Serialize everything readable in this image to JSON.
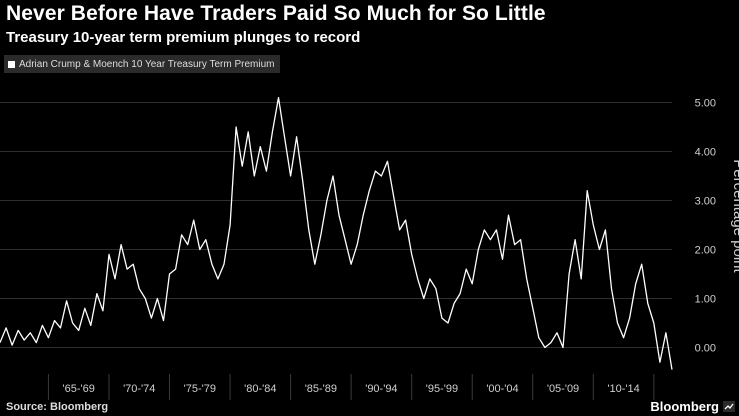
{
  "chart_data": {
    "type": "line",
    "title": "Never Before Have Traders Paid So Much for So Little",
    "subtitle": "Treasury 10-year term premium plunges to record",
    "ylabel": "Percentage point",
    "ylim": [
      -0.5,
      5.5
    ],
    "yticks": [
      5.0,
      4.0,
      3.0,
      2.0,
      1.0,
      0.0
    ],
    "ytick_labels": [
      "5.00",
      "4.00",
      "3.00",
      "2.00",
      "1.00",
      "0.00"
    ],
    "xlim": [
      1961,
      2016.5
    ],
    "xtick_labels": [
      "'65-'69",
      "'70-'74",
      "'75-'79",
      "'80-'84",
      "'85-'89",
      "'90-'94",
      "'95-'99",
      "'00-'04",
      "'05-'09",
      "'10-'14"
    ],
    "xtick_centers": [
      1967.5,
      1972.5,
      1977.5,
      1982.5,
      1987.5,
      1992.5,
      1997.5,
      2002.5,
      2007.5,
      2012.5
    ],
    "grid": true,
    "legend_position": "top-left",
    "series": [
      {
        "name": "Adrian Crump & Moench 10 Year Treasury Term Premium",
        "color": "#ffffff",
        "points": [
          [
            1961.0,
            0.1
          ],
          [
            1961.5,
            0.4
          ],
          [
            1962.0,
            0.05
          ],
          [
            1962.5,
            0.35
          ],
          [
            1963.0,
            0.15
          ],
          [
            1963.5,
            0.3
          ],
          [
            1964.0,
            0.1
          ],
          [
            1964.5,
            0.45
          ],
          [
            1965.0,
            0.2
          ],
          [
            1965.5,
            0.55
          ],
          [
            1966.0,
            0.4
          ],
          [
            1966.5,
            0.95
          ],
          [
            1967.0,
            0.5
          ],
          [
            1967.5,
            0.35
          ],
          [
            1968.0,
            0.8
          ],
          [
            1968.5,
            0.45
          ],
          [
            1969.0,
            1.1
          ],
          [
            1969.5,
            0.75
          ],
          [
            1970.0,
            1.9
          ],
          [
            1970.5,
            1.4
          ],
          [
            1971.0,
            2.1
          ],
          [
            1971.5,
            1.6
          ],
          [
            1972.0,
            1.7
          ],
          [
            1972.5,
            1.2
          ],
          [
            1973.0,
            1.0
          ],
          [
            1973.5,
            0.6
          ],
          [
            1974.0,
            1.0
          ],
          [
            1974.5,
            0.55
          ],
          [
            1975.0,
            1.5
          ],
          [
            1975.5,
            1.6
          ],
          [
            1976.0,
            2.3
          ],
          [
            1976.5,
            2.1
          ],
          [
            1977.0,
            2.6
          ],
          [
            1977.5,
            2.0
          ],
          [
            1978.0,
            2.2
          ],
          [
            1978.5,
            1.7
          ],
          [
            1979.0,
            1.4
          ],
          [
            1979.5,
            1.7
          ],
          [
            1980.0,
            2.5
          ],
          [
            1980.5,
            4.5
          ],
          [
            1981.0,
            3.7
          ],
          [
            1981.5,
            4.4
          ],
          [
            1982.0,
            3.5
          ],
          [
            1982.5,
            4.1
          ],
          [
            1983.0,
            3.6
          ],
          [
            1983.5,
            4.4
          ],
          [
            1984.0,
            5.1
          ],
          [
            1984.5,
            4.3
          ],
          [
            1985.0,
            3.5
          ],
          [
            1985.5,
            4.3
          ],
          [
            1986.0,
            3.4
          ],
          [
            1986.5,
            2.4
          ],
          [
            1987.0,
            1.7
          ],
          [
            1987.5,
            2.3
          ],
          [
            1988.0,
            3.0
          ],
          [
            1988.5,
            3.5
          ],
          [
            1989.0,
            2.7
          ],
          [
            1989.5,
            2.2
          ],
          [
            1990.0,
            1.7
          ],
          [
            1990.5,
            2.1
          ],
          [
            1991.0,
            2.7
          ],
          [
            1991.5,
            3.2
          ],
          [
            1992.0,
            3.6
          ],
          [
            1992.5,
            3.5
          ],
          [
            1993.0,
            3.8
          ],
          [
            1993.5,
            3.1
          ],
          [
            1994.0,
            2.4
          ],
          [
            1994.5,
            2.6
          ],
          [
            1995.0,
            1.9
          ],
          [
            1995.5,
            1.4
          ],
          [
            1996.0,
            1.0
          ],
          [
            1996.5,
            1.4
          ],
          [
            1997.0,
            1.2
          ],
          [
            1997.5,
            0.6
          ],
          [
            1998.0,
            0.5
          ],
          [
            1998.5,
            0.9
          ],
          [
            1999.0,
            1.1
          ],
          [
            1999.5,
            1.6
          ],
          [
            2000.0,
            1.3
          ],
          [
            2000.5,
            2.0
          ],
          [
            2001.0,
            2.4
          ],
          [
            2001.5,
            2.2
          ],
          [
            2002.0,
            2.4
          ],
          [
            2002.5,
            1.8
          ],
          [
            2003.0,
            2.7
          ],
          [
            2003.5,
            2.1
          ],
          [
            2004.0,
            2.2
          ],
          [
            2004.5,
            1.4
          ],
          [
            2005.0,
            0.8
          ],
          [
            2005.5,
            0.2
          ],
          [
            2006.0,
            0.0
          ],
          [
            2006.5,
            0.1
          ],
          [
            2007.0,
            0.3
          ],
          [
            2007.5,
            0.0
          ],
          [
            2008.0,
            1.5
          ],
          [
            2008.5,
            2.2
          ],
          [
            2009.0,
            1.4
          ],
          [
            2009.5,
            3.2
          ],
          [
            2010.0,
            2.5
          ],
          [
            2010.5,
            2.0
          ],
          [
            2011.0,
            2.4
          ],
          [
            2011.5,
            1.2
          ],
          [
            2012.0,
            0.5
          ],
          [
            2012.5,
            0.2
          ],
          [
            2013.0,
            0.6
          ],
          [
            2013.5,
            1.3
          ],
          [
            2014.0,
            1.7
          ],
          [
            2014.5,
            0.9
          ],
          [
            2015.0,
            0.5
          ],
          [
            2015.5,
            -0.3
          ],
          [
            2016.0,
            0.3
          ],
          [
            2016.5,
            -0.45
          ]
        ]
      }
    ]
  },
  "source": "Source: Bloomberg",
  "brand": "Bloomberg"
}
